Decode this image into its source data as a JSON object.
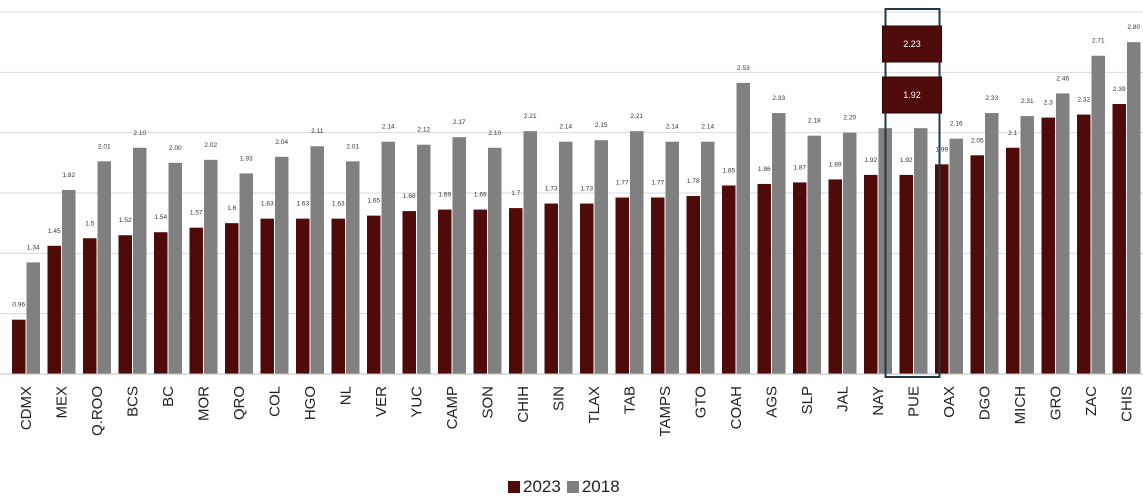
{
  "chart_data": {
    "type": "bar",
    "categories": [
      "CDMX",
      "MEX",
      "Q.ROO",
      "BCS",
      "BC",
      "MOR",
      "QRO",
      "COL",
      "HGO",
      "NL",
      "VER",
      "YUC",
      "CAMP",
      "SON",
      "CHIH",
      "SIN",
      "TLAX",
      "TAB",
      "TAMPS",
      "GTO",
      "COAH",
      "AGS",
      "SLP",
      "JAL",
      "NAY",
      "PUE",
      "OAX",
      "DGO",
      "MICH",
      "GRO",
      "ZAC",
      "CHIS"
    ],
    "series": [
      {
        "name": "2023",
        "color": "#4f0a0a",
        "values": [
          0.96,
          1.45,
          1.5,
          1.52,
          1.54,
          1.57,
          1.6,
          1.63,
          1.63,
          1.63,
          1.65,
          1.68,
          1.69,
          1.69,
          1.7,
          1.73,
          1.73,
          1.77,
          1.77,
          1.78,
          1.85,
          1.86,
          1.87,
          1.89,
          1.92,
          1.92,
          1.99,
          2.05,
          2.1,
          2.3,
          2.32,
          2.39
        ],
        "labels": [
          "0.96",
          "1.45",
          "1.5",
          "1.52",
          "1.54",
          "1.57",
          "1.6",
          "1.63",
          "1.63",
          "1.63",
          "1.65",
          "1.68",
          "1.69",
          "1.69",
          "1.7",
          "1.73",
          "1.73",
          "1.77",
          "1.77",
          "1.78",
          "1.85",
          "1.86",
          "1.87",
          "1.89",
          "1.92",
          "1.92",
          "1.99",
          "2.05",
          "2.1",
          "2.3",
          "2.32",
          "2.39"
        ]
      },
      {
        "name": "2018",
        "color": "#808080",
        "values": [
          1.34,
          1.82,
          2.01,
          2.1,
          2.0,
          2.02,
          1.93,
          2.04,
          2.11,
          2.01,
          2.14,
          2.12,
          2.17,
          2.1,
          2.21,
          2.14,
          2.15,
          2.21,
          2.14,
          2.14,
          2.53,
          2.33,
          2.18,
          2.2,
          2.23,
          2.23,
          2.16,
          2.33,
          2.31,
          2.46,
          2.71,
          2.8
        ],
        "labels": [
          "1.34",
          "1.82",
          "2.01",
          "2.10",
          "2.00",
          "2.02",
          "1.93",
          "2.04",
          "2.11",
          "2.01",
          "2.14",
          "2.12",
          "2.17",
          "2.10",
          "2.21",
          "2.14",
          "2.15",
          "2.21",
          "2.14",
          "2.14",
          "2.53",
          "2.33",
          "2.18",
          "2.20",
          "",
          "",
          "2.16",
          "2.33",
          "2.31",
          "2.46",
          "2.71",
          "2.80"
        ]
      }
    ],
    "ylim": [
      0.6,
      3.0
    ],
    "grid": true,
    "legend_position": "bottom-center",
    "highlight": {
      "category": "PUE",
      "callout_2018": "2.23",
      "callout_2023": "1.92",
      "callout_color": "#4f0a0a",
      "frame_color": "#1f3a4d"
    }
  }
}
